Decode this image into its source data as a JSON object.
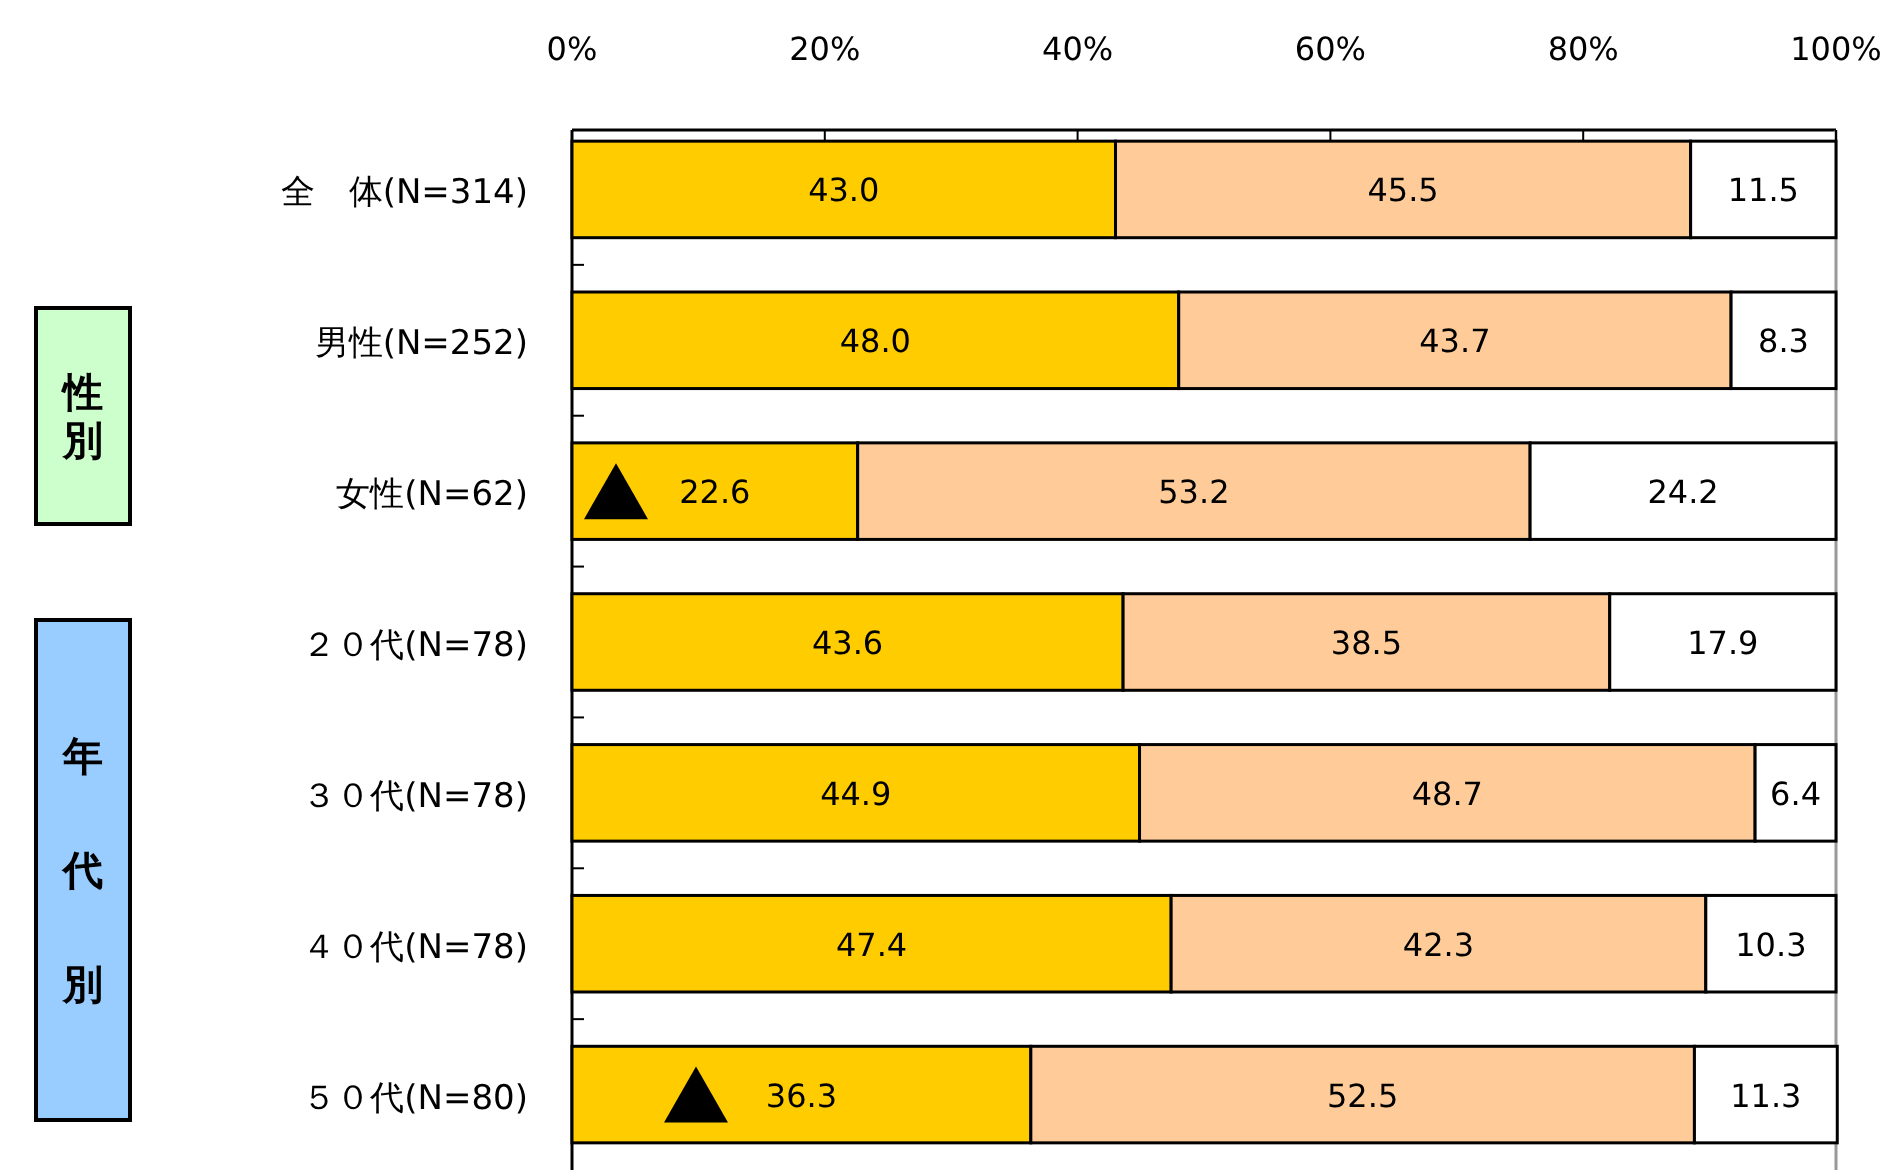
{
  "chart_data": {
    "type": "bar",
    "orientation": "horizontal",
    "stacked": true,
    "categories": [
      "全　体(N=314)",
      "男性(N=252)",
      "女性(N=62)",
      "２０代(N=78)",
      "３０代(N=78)",
      "４０代(N=78)",
      "５０代(N=80)"
    ],
    "series": [
      {
        "color": "#ffcc00",
        "values": [
          43.0,
          48.0,
          22.6,
          43.6,
          44.9,
          47.4,
          36.3
        ],
        "value_labels": [
          "43.0",
          "48.0",
          "22.6",
          "43.6",
          "44.9",
          "47.4",
          "36.3"
        ]
      },
      {
        "color": "#ffcc99",
        "values": [
          45.5,
          43.7,
          53.2,
          38.5,
          48.7,
          42.3,
          52.5
        ],
        "value_labels": [
          "45.5",
          "43.7",
          "53.2",
          "38.5",
          "48.7",
          "42.3",
          "52.5"
        ]
      },
      {
        "color": "#ffffff",
        "values": [
          11.5,
          8.3,
          24.2,
          17.9,
          6.4,
          10.3,
          11.3
        ],
        "value_labels": [
          "11.5",
          "8.3",
          "24.2",
          "17.9",
          "6.4",
          "10.3",
          "11.3"
        ]
      }
    ],
    "xlim": [
      0,
      100
    ],
    "xticks": [
      {
        "value": 0,
        "label": "0%"
      },
      {
        "value": 20,
        "label": "20%"
      },
      {
        "value": 40,
        "label": "40%"
      },
      {
        "value": 60,
        "label": "60%"
      },
      {
        "value": 80,
        "label": "80%"
      },
      {
        "value": 100,
        "label": "100%"
      }
    ],
    "annotations": [
      "性別",
      "年代別"
    ]
  }
}
